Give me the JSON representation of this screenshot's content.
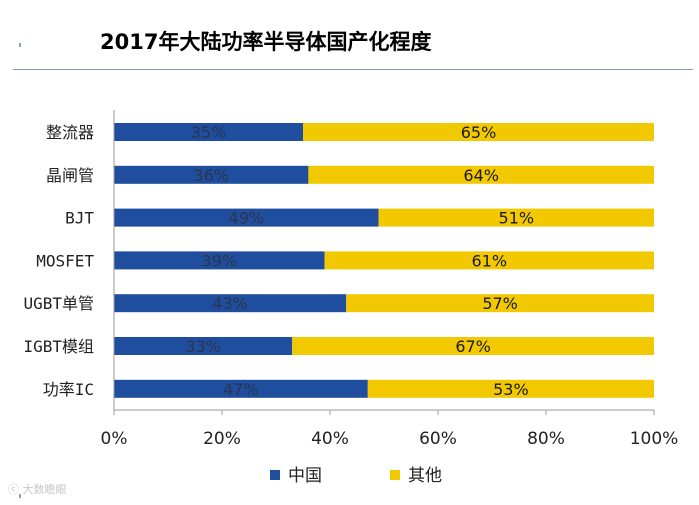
{
  "title": "2017年大陆功率半导体国产化程度",
  "watermark": "大数瞻眼",
  "chart_data": {
    "type": "bar",
    "orientation": "horizontal",
    "stacked": true,
    "percent_scale": true,
    "categories": [
      "整流器",
      "晶闸管",
      "BJT",
      "MOSFET",
      "UGBT单管",
      "IGBT模组",
      "功率IC"
    ],
    "series": [
      {
        "name": "中国",
        "values": [
          35,
          36,
          49,
          39,
          43,
          33,
          47
        ],
        "labels": [
          "35%",
          "36%",
          "49%",
          "39%",
          "43%",
          "33%",
          "47%"
        ],
        "color": "#1f4e9e"
      },
      {
        "name": "其他",
        "values": [
          65,
          64,
          51,
          61,
          57,
          67,
          53
        ],
        "labels": [
          "65%",
          "64%",
          "51%",
          "61%",
          "57%",
          "67%",
          "53%"
        ],
        "color": "#f2c900"
      }
    ],
    "xlim": [
      0,
      100
    ],
    "xticks": [
      "0%",
      "20%",
      "40%",
      "60%",
      "80%",
      "100%"
    ],
    "grid": false,
    "legend_position": "bottom"
  }
}
